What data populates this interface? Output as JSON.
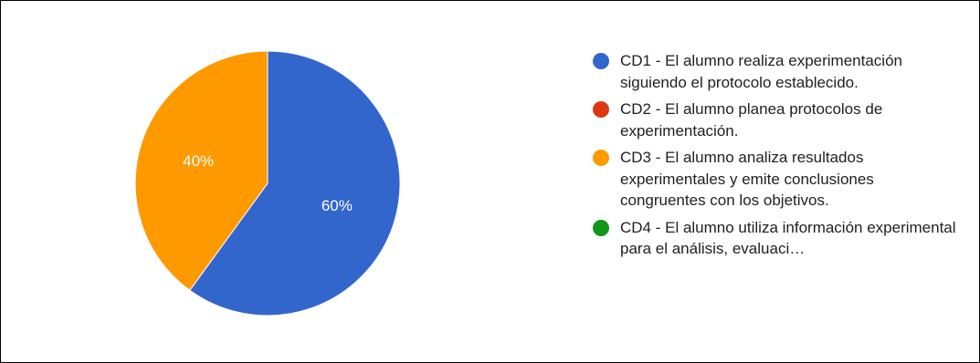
{
  "chart_data": {
    "type": "pie",
    "title": "",
    "slices": [
      {
        "label": "CD1 - El alumno realiza experimentación siguiendo el protocolo establecido.",
        "legend_text": "CD1 - El alumno realiza experimentación siguiendo el protocolo establecido.",
        "value": 60,
        "value_label": "60%",
        "color": "#3366cc"
      },
      {
        "label": "CD2 - El alumno planea protocolos de experimentación.",
        "legend_text": "CD2 - El alumno planea protocolos de experimentación.",
        "value": 0,
        "value_label": "",
        "color": "#dc3912"
      },
      {
        "label": "CD3 - El alumno analiza resultados experimentales y emite conclusiones congruentes con los objetivos.",
        "legend_text": "CD3 - El alumno analiza resultados experimentales y emite conclusiones congruentes con los objetivos.",
        "value": 40,
        "value_label": "40%",
        "color": "#ff9900"
      },
      {
        "label": "CD4 - El alumno utiliza información experimental para el análisis, evaluación…",
        "legend_text": "CD4 - El alumno utiliza información experimental para el análisis, evaluaci…",
        "value": 0,
        "value_label": "",
        "color": "#109618"
      }
    ],
    "legend_position": "right"
  }
}
